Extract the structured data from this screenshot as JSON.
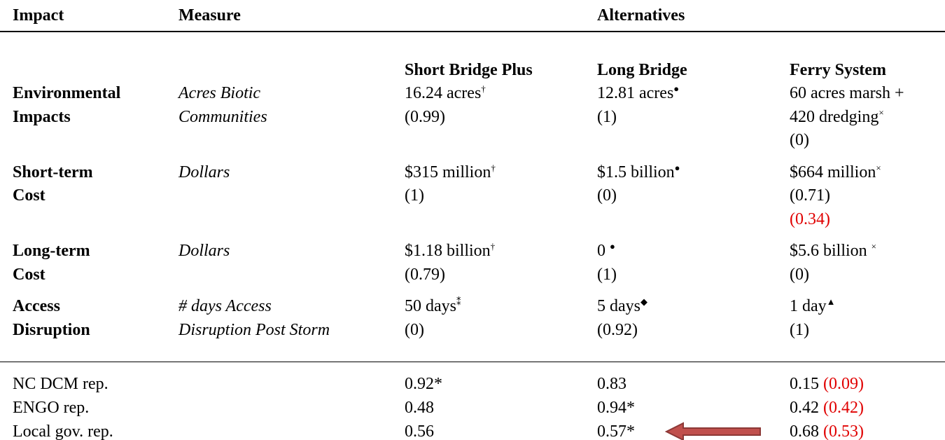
{
  "header": {
    "impact": "Impact",
    "measure": "Measure",
    "alternatives": "Alternatives"
  },
  "alternatives": [
    "Short Bridge Plus",
    "Long Bridge",
    "Ferry System"
  ],
  "rows": [
    {
      "impact": [
        "Environmental",
        "Impacts"
      ],
      "measure": [
        "Acres Biotic",
        "Communities"
      ],
      "cells": [
        [
          {
            "text": "16.24 acres",
            "sup": "†"
          },
          {
            "text": "(0.99)"
          }
        ],
        [
          {
            "text": "12.81 acres",
            "sup": "●"
          },
          {
            "text": "(1)"
          }
        ],
        [
          {
            "text": "60 acres marsh +"
          },
          {
            "text": "420 dredging",
            "sup": "×"
          },
          {
            "text": "(0)"
          }
        ]
      ]
    },
    {
      "impact": [
        "Short-term",
        "Cost"
      ],
      "measure": [
        "Dollars"
      ],
      "cells": [
        [
          {
            "text": "$315 million",
            "sup": "†"
          },
          {
            "text": "(1)"
          }
        ],
        [
          {
            "text": "$1.5 billion",
            "sup": "●"
          },
          {
            "text": "(0)"
          }
        ],
        [
          {
            "text": "$664 million",
            "sup": "×"
          },
          {
            "text": "(0.71)"
          },
          {
            "note": "(0.34)"
          }
        ]
      ]
    },
    {
      "impact": [
        "Long-term",
        "Cost"
      ],
      "measure": [
        "Dollars"
      ],
      "cells": [
        [
          {
            "text": "$1.18 billion",
            "sup": "†"
          },
          {
            "text": "(0.79)"
          }
        ],
        [
          {
            "text": "0 ",
            "sup": "●"
          },
          {
            "text": "(1)"
          }
        ],
        [
          {
            "text": "$5.6 billion ",
            "sup": "×"
          },
          {
            "text": "(0)"
          }
        ]
      ]
    },
    {
      "impact": [
        "Access",
        "Disruption"
      ],
      "measure": [
        "# days Access",
        "Disruption Post Storm"
      ],
      "cells": [
        [
          {
            "text": "50 days",
            "sup": "⁑"
          },
          {
            "text": "(0)"
          }
        ],
        [
          {
            "text": "5 days",
            "sup": "◆"
          },
          {
            "text": "(0.92)"
          }
        ],
        [
          {
            "text": "1 day",
            "sup": "▲"
          },
          {
            "text": "(1)"
          }
        ]
      ]
    }
  ],
  "reps": [
    {
      "name": "NC DCM rep.",
      "cells": [
        {
          "text": "0.92*"
        },
        {
          "text": "0.83"
        },
        {
          "text": "0.15 ",
          "note": "(0.09)"
        }
      ]
    },
    {
      "name": "ENGO rep.",
      "cells": [
        {
          "text": "0.48"
        },
        {
          "text": "0.94*"
        },
        {
          "text": "0.42 ",
          "note": "(0.42)"
        }
      ]
    },
    {
      "name": "Local gov. rep.",
      "cells": [
        {
          "text": "0.56"
        },
        {
          "text": "0.57*"
        },
        {
          "text": "0.68 ",
          "note": "(0.53)"
        }
      ]
    }
  ]
}
